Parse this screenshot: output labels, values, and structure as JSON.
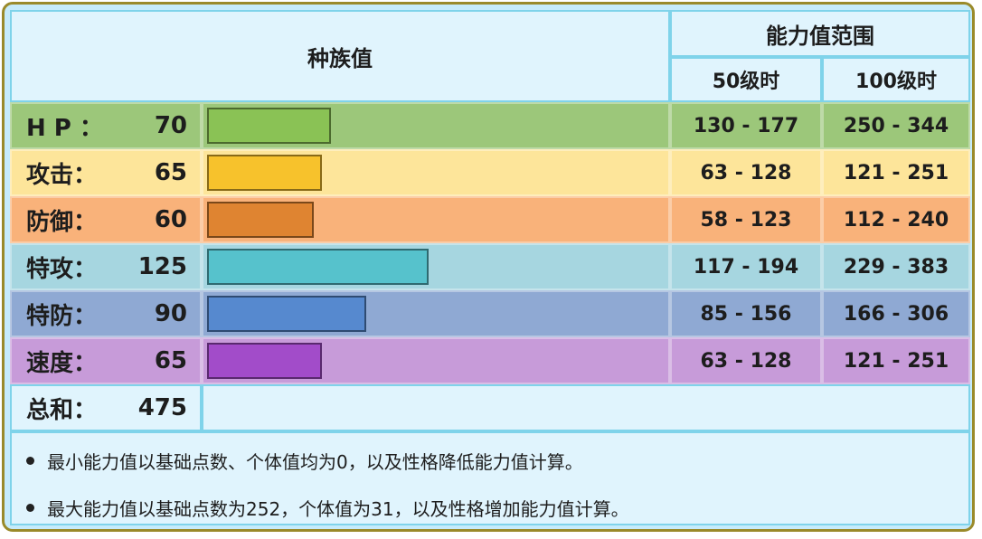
{
  "header": {
    "base_stats_title": "种族值",
    "range_title": "能力值范围",
    "lv50_label": "50级时",
    "lv100_label": "100级时"
  },
  "stats": [
    {
      "label": "H P ：",
      "value": "70",
      "value_num": 70,
      "lv50": "130 - 177",
      "lv100": "250 - 344",
      "row_color": "#9cc77a",
      "label_color": "#9cc77a",
      "bar_color": "#8ac255",
      "range_color": "#9cc77a"
    },
    {
      "label": "攻击：",
      "value": "65",
      "value_num": 65,
      "lv50": "63 - 128",
      "lv100": "121 - 251",
      "row_color": "#fde59a",
      "label_color": "#fde59a",
      "bar_color": "#f7c22c",
      "range_color": "#fde59a"
    },
    {
      "label": "防御：",
      "value": "60",
      "value_num": 60,
      "lv50": "58 - 123",
      "lv100": "112 - 240",
      "row_color": "#f9b27a",
      "label_color": "#f9b27a",
      "bar_color": "#df8431",
      "range_color": "#f9b27a"
    },
    {
      "label": "特攻：",
      "value": "125",
      "value_num": 125,
      "lv50": "117 - 194",
      "lv100": "229 - 383",
      "row_color": "#a6d6e0",
      "label_color": "#a6d6e0",
      "bar_color": "#56c2cc",
      "range_color": "#a6d6e0"
    },
    {
      "label": "特防：",
      "value": "90",
      "value_num": 90,
      "lv50": "85 - 156",
      "lv100": "166 - 306",
      "row_color": "#8fa9d3",
      "label_color": "#8fa9d3",
      "bar_color": "#5689cf",
      "range_color": "#8fa9d3"
    },
    {
      "label": "速度：",
      "value": "65",
      "value_num": 65,
      "lv50": "63 - 128",
      "lv100": "121 - 251",
      "row_color": "#c79bd9",
      "label_color": "#c79bd9",
      "bar_color": "#a24cc9",
      "range_color": "#c79bd9"
    }
  ],
  "total": {
    "label": "总和：",
    "value": "475"
  },
  "bar_scale_max": 255,
  "notes": [
    "最小能力值以基础点数、个体值均为0，以及性格降低能力值计算。",
    "最大能力值以基础点数为252，个体值为31，以及性格增加能力值计算。"
  ]
}
